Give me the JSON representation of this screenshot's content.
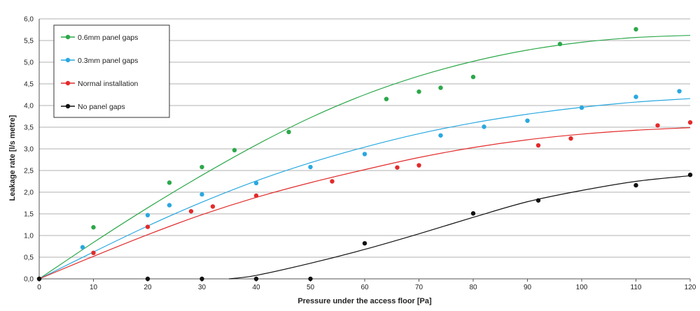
{
  "chart_data": {
    "type": "scatter",
    "title": "",
    "xlabel": "Pressure under the access floor [Pa]",
    "ylabel": "Leakage rate [l/s metre]",
    "xlim": [
      0,
      120
    ],
    "ylim": [
      0,
      6
    ],
    "xticks": [
      "0",
      "10",
      "20",
      "30",
      "40",
      "50",
      "60",
      "70",
      "80",
      "90",
      "100",
      "110",
      "120"
    ],
    "yticks": [
      "0,0",
      "0,5",
      "1,0",
      "1,5",
      "2,0",
      "2,5",
      "3,0",
      "3,5",
      "4,0",
      "4,5",
      "5,0",
      "5,5",
      "6,0"
    ],
    "grid": "horizontal",
    "legend_position": "top-left",
    "series": [
      {
        "name": "0.6mm panel gaps",
        "color": "#2ca84a",
        "points": [
          [
            0,
            0
          ],
          [
            10,
            1.19
          ],
          [
            24,
            2.22
          ],
          [
            30,
            2.58
          ],
          [
            36,
            2.97
          ],
          [
            46,
            3.39
          ],
          [
            64,
            4.15
          ],
          [
            70,
            4.32
          ],
          [
            74,
            4.41
          ],
          [
            80,
            4.66
          ],
          [
            96,
            5.42
          ],
          [
            110,
            5.76
          ]
        ],
        "trend": [
          [
            0,
            0
          ],
          [
            10,
            0.84
          ],
          [
            20,
            1.64
          ],
          [
            30,
            2.39
          ],
          [
            40,
            3.09
          ],
          [
            50,
            3.72
          ],
          [
            60,
            4.25
          ],
          [
            70,
            4.68
          ],
          [
            80,
            5.02
          ],
          [
            90,
            5.28
          ],
          [
            100,
            5.46
          ],
          [
            110,
            5.57
          ],
          [
            120,
            5.62
          ]
        ]
      },
      {
        "name": "0.3mm panel gaps",
        "color": "#29a8e0",
        "points": [
          [
            0,
            0
          ],
          [
            8,
            0.73
          ],
          [
            20,
            1.47
          ],
          [
            24,
            1.7
          ],
          [
            30,
            1.95
          ],
          [
            40,
            2.21
          ],
          [
            50,
            2.58
          ],
          [
            60,
            2.88
          ],
          [
            74,
            3.31
          ],
          [
            82,
            3.51
          ],
          [
            90,
            3.65
          ],
          [
            100,
            3.95
          ],
          [
            110,
            4.2
          ],
          [
            118,
            4.33
          ]
        ],
        "trend": [
          [
            0,
            0
          ],
          [
            10,
            0.62
          ],
          [
            20,
            1.22
          ],
          [
            30,
            1.77
          ],
          [
            40,
            2.26
          ],
          [
            50,
            2.68
          ],
          [
            60,
            3.04
          ],
          [
            70,
            3.35
          ],
          [
            80,
            3.6
          ],
          [
            90,
            3.8
          ],
          [
            100,
            3.96
          ],
          [
            110,
            4.08
          ],
          [
            120,
            4.16
          ]
        ]
      },
      {
        "name": "Normal installation",
        "color": "#e22b2b",
        "points": [
          [
            0,
            0
          ],
          [
            10,
            0.6
          ],
          [
            20,
            1.2
          ],
          [
            28,
            1.56
          ],
          [
            32,
            1.67
          ],
          [
            40,
            1.92
          ],
          [
            54,
            2.25
          ],
          [
            66,
            2.57
          ],
          [
            70,
            2.62
          ],
          [
            92,
            3.08
          ],
          [
            98,
            3.24
          ],
          [
            114,
            3.54
          ],
          [
            120,
            3.61
          ]
        ],
        "trend": [
          [
            0,
            0
          ],
          [
            10,
            0.52
          ],
          [
            20,
            1.02
          ],
          [
            30,
            1.48
          ],
          [
            40,
            1.88
          ],
          [
            50,
            2.22
          ],
          [
            60,
            2.52
          ],
          [
            70,
            2.8
          ],
          [
            80,
            3.03
          ],
          [
            90,
            3.21
          ],
          [
            100,
            3.34
          ],
          [
            110,
            3.43
          ],
          [
            120,
            3.49
          ]
        ]
      },
      {
        "name": "No panel gaps",
        "color": "#111111",
        "points": [
          [
            0,
            0
          ],
          [
            20,
            0
          ],
          [
            30,
            0
          ],
          [
            40,
            0
          ],
          [
            50,
            0
          ],
          [
            60,
            0.82
          ],
          [
            80,
            1.51
          ],
          [
            92,
            1.81
          ],
          [
            110,
            2.16
          ],
          [
            120,
            2.4
          ]
        ],
        "trend": [
          [
            35,
            0
          ],
          [
            40,
            0.08
          ],
          [
            50,
            0.36
          ],
          [
            60,
            0.68
          ],
          [
            70,
            1.04
          ],
          [
            80,
            1.42
          ],
          [
            90,
            1.78
          ],
          [
            100,
            2.04
          ],
          [
            110,
            2.25
          ],
          [
            120,
            2.38
          ]
        ]
      }
    ]
  }
}
